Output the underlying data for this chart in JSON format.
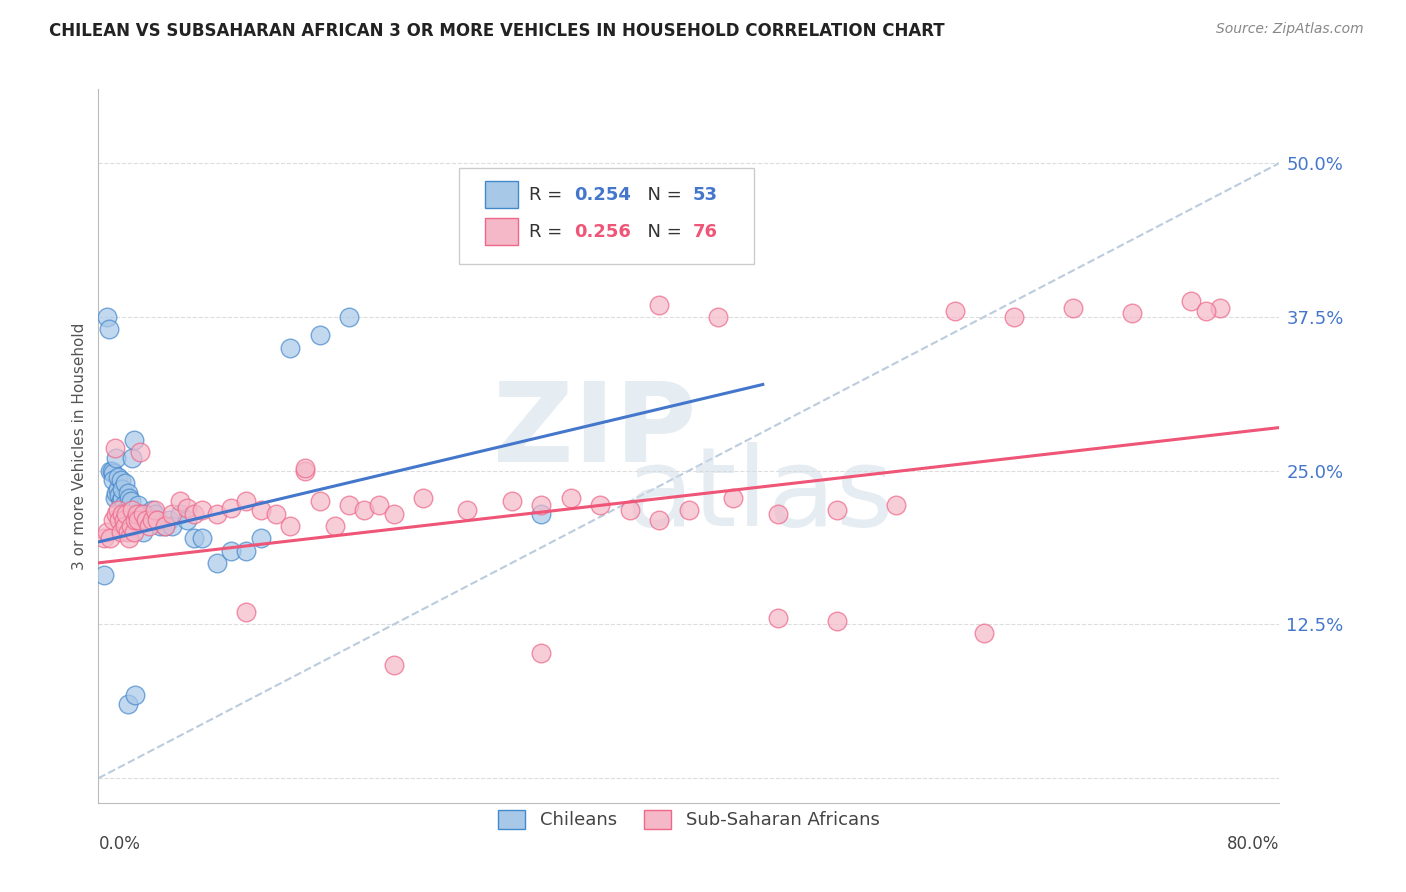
{
  "title": "CHILEAN VS SUBSAHARAN AFRICAN 3 OR MORE VEHICLES IN HOUSEHOLD CORRELATION CHART",
  "source": "Source: ZipAtlas.com",
  "ylabel": "3 or more Vehicles in Household",
  "yticks": [
    0.0,
    0.125,
    0.25,
    0.375,
    0.5
  ],
  "ytick_labels": [
    "",
    "12.5%",
    "25.0%",
    "37.5%",
    "50.0%"
  ],
  "xlim": [
    0.0,
    0.8
  ],
  "ylim": [
    -0.02,
    0.56
  ],
  "legend_label_1": "Chileans",
  "legend_label_2": "Sub-Saharan Africans",
  "blue_fill": "#a8c8e8",
  "pink_fill": "#f4b8c8",
  "blue_edge": "#4488cc",
  "pink_edge": "#ee6688",
  "blue_line": "#4477cc",
  "pink_line": "#ee5577",
  "dash_color": "#bbccdd",
  "grid_color": "#dddddd",
  "R1": 0.254,
  "N1": 53,
  "R2": 0.256,
  "N2": 76,
  "blue_line_x0": 0.0,
  "blue_line_y0": 0.192,
  "blue_line_x1": 0.45,
  "blue_line_y1": 0.32,
  "pink_line_x0": 0.0,
  "pink_line_y0": 0.175,
  "pink_line_x1": 0.8,
  "pink_line_y1": 0.285,
  "chilean_x": [
    0.004,
    0.006,
    0.007,
    0.008,
    0.009,
    0.01,
    0.01,
    0.011,
    0.012,
    0.012,
    0.013,
    0.013,
    0.014,
    0.015,
    0.015,
    0.016,
    0.016,
    0.017,
    0.018,
    0.019,
    0.02,
    0.021,
    0.022,
    0.023,
    0.024,
    0.025,
    0.027,
    0.028,
    0.03,
    0.032,
    0.035,
    0.036,
    0.038,
    0.04,
    0.042,
    0.045,
    0.048,
    0.05,
    0.055,
    0.06,
    0.065,
    0.07,
    0.08,
    0.09,
    0.1,
    0.11,
    0.13,
    0.15,
    0.17,
    0.3,
    0.02,
    0.025,
    0.03
  ],
  "chilean_y": [
    0.165,
    0.375,
    0.365,
    0.25,
    0.25,
    0.248,
    0.242,
    0.228,
    0.232,
    0.26,
    0.235,
    0.245,
    0.23,
    0.225,
    0.242,
    0.228,
    0.235,
    0.222,
    0.24,
    0.218,
    0.232,
    0.228,
    0.225,
    0.26,
    0.275,
    0.215,
    0.222,
    0.215,
    0.21,
    0.215,
    0.21,
    0.218,
    0.215,
    0.21,
    0.205,
    0.205,
    0.21,
    0.205,
    0.215,
    0.21,
    0.195,
    0.195,
    0.175,
    0.185,
    0.185,
    0.195,
    0.35,
    0.36,
    0.375,
    0.215,
    0.06,
    0.068,
    0.2
  ],
  "african_x": [
    0.004,
    0.006,
    0.008,
    0.01,
    0.011,
    0.012,
    0.013,
    0.014,
    0.015,
    0.016,
    0.017,
    0.018,
    0.019,
    0.02,
    0.021,
    0.022,
    0.023,
    0.024,
    0.025,
    0.026,
    0.027,
    0.028,
    0.03,
    0.032,
    0.034,
    0.036,
    0.038,
    0.04,
    0.045,
    0.05,
    0.055,
    0.06,
    0.065,
    0.07,
    0.08,
    0.09,
    0.1,
    0.11,
    0.12,
    0.13,
    0.14,
    0.15,
    0.16,
    0.17,
    0.18,
    0.19,
    0.2,
    0.22,
    0.25,
    0.28,
    0.3,
    0.32,
    0.34,
    0.36,
    0.38,
    0.4,
    0.43,
    0.46,
    0.5,
    0.54,
    0.58,
    0.62,
    0.66,
    0.7,
    0.74,
    0.76,
    0.46,
    0.5,
    0.38,
    0.42,
    0.1,
    0.2,
    0.3,
    0.6,
    0.75,
    0.14
  ],
  "african_y": [
    0.195,
    0.2,
    0.195,
    0.21,
    0.268,
    0.215,
    0.218,
    0.21,
    0.2,
    0.215,
    0.21,
    0.205,
    0.215,
    0.2,
    0.195,
    0.205,
    0.218,
    0.2,
    0.21,
    0.215,
    0.21,
    0.265,
    0.215,
    0.21,
    0.205,
    0.21,
    0.218,
    0.21,
    0.205,
    0.215,
    0.225,
    0.22,
    0.215,
    0.218,
    0.215,
    0.22,
    0.225,
    0.218,
    0.215,
    0.205,
    0.25,
    0.225,
    0.205,
    0.222,
    0.218,
    0.222,
    0.215,
    0.228,
    0.218,
    0.225,
    0.222,
    0.228,
    0.222,
    0.218,
    0.21,
    0.218,
    0.228,
    0.215,
    0.218,
    0.222,
    0.38,
    0.375,
    0.382,
    0.378,
    0.388,
    0.382,
    0.13,
    0.128,
    0.385,
    0.375,
    0.135,
    0.092,
    0.102,
    0.118,
    0.38,
    0.252
  ]
}
